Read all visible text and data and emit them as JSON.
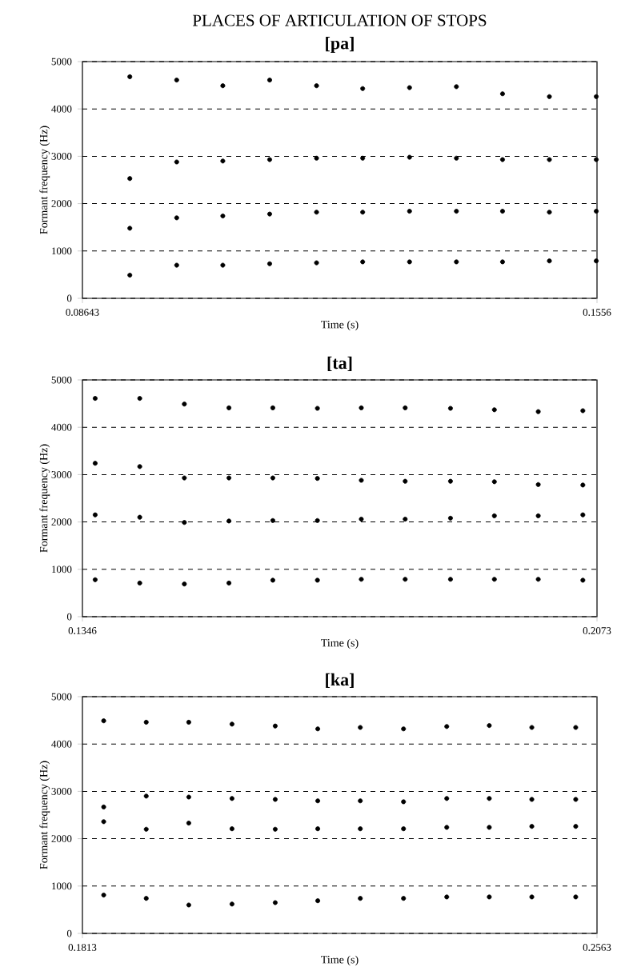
{
  "chart_data": [
    {
      "type": "scatter",
      "title": "[pa]",
      "xlabel": "Time (s)",
      "ylabel": "Formant frequency (Hz)",
      "annotations": [
        "PLACES OF ARTICULATION OF STOPS"
      ],
      "grid": "y",
      "xlim": [
        0.08643,
        0.1556
      ],
      "xticks": [
        0.08643,
        0.1556
      ],
      "ylim": [
        0,
        5000
      ],
      "yticks": [
        0,
        1000,
        2000,
        3000,
        4000,
        5000
      ],
      "x": [
        0.0928,
        0.0991,
        0.1053,
        0.1116,
        0.1179,
        0.1241,
        0.1304,
        0.1367,
        0.1429,
        0.1492,
        0.1555
      ],
      "series": [
        {
          "color": "#000000",
          "values": [
            490,
            700,
            700,
            730,
            750,
            770,
            770,
            770,
            770,
            790,
            790
          ]
        },
        {
          "color": "#000000",
          "values": [
            1480,
            1700,
            1740,
            1780,
            1820,
            1820,
            1840,
            1840,
            1840,
            1820,
            1840
          ]
        },
        {
          "color": "#000000",
          "values": [
            2530,
            2880,
            2900,
            2930,
            2960,
            2960,
            2980,
            2960,
            2930,
            2930,
            2930
          ]
        },
        {
          "color": "#000000",
          "values": [
            4680,
            4610,
            4490,
            4610,
            4490,
            4430,
            4450,
            4470,
            4320,
            4260,
            4260
          ]
        }
      ]
    },
    {
      "type": "scatter",
      "title": "[ta]",
      "xlabel": "Time (s)",
      "ylabel": "Formant frequency (Hz)",
      "grid": "y",
      "xlim": [
        0.1346,
        0.2073
      ],
      "xticks": [
        0.1346,
        0.2073
      ],
      "ylim": [
        0,
        5000
      ],
      "yticks": [
        0,
        1000,
        2000,
        3000,
        4000,
        5000
      ],
      "x": [
        0.1364,
        0.1427,
        0.149,
        0.1553,
        0.1615,
        0.1678,
        0.174,
        0.1802,
        0.1866,
        0.1928,
        0.199,
        0.2053
      ],
      "series": [
        {
          "color": "#000000",
          "values": [
            780,
            710,
            690,
            710,
            770,
            770,
            790,
            790,
            790,
            790,
            790,
            770
          ]
        },
        {
          "color": "#000000",
          "values": [
            2150,
            2100,
            1990,
            2020,
            2030,
            2030,
            2060,
            2060,
            2080,
            2130,
            2130,
            2150
          ]
        },
        {
          "color": "#000000",
          "values": [
            3240,
            3170,
            2930,
            2930,
            2930,
            2920,
            2880,
            2860,
            2860,
            2850,
            2790,
            2780
          ]
        },
        {
          "color": "#000000",
          "values": [
            4610,
            4610,
            4490,
            4410,
            4410,
            4400,
            4410,
            4410,
            4400,
            4370,
            4330,
            4350
          ]
        }
      ]
    },
    {
      "type": "scatter",
      "title": "[ka]",
      "xlabel": "Time (s)",
      "ylabel": "Formant frequency (Hz)",
      "grid": "y",
      "xlim": [
        0.1813,
        0.2563
      ],
      "xticks": [
        0.1813,
        0.2563
      ],
      "ylim": [
        0,
        5000
      ],
      "yticks": [
        0,
        1000,
        2000,
        3000,
        4000,
        5000
      ],
      "x": [
        0.1844,
        0.1906,
        0.1968,
        0.2031,
        0.2094,
        0.2156,
        0.2218,
        0.2281,
        0.2344,
        0.2406,
        0.2468,
        0.2532
      ],
      "series": [
        {
          "color": "#000000",
          "values": [
            810,
            740,
            600,
            620,
            650,
            690,
            740,
            740,
            770,
            770,
            770,
            770
          ]
        },
        {
          "color": "#000000",
          "values": [
            2360,
            2200,
            2330,
            2210,
            2200,
            2210,
            2210,
            2210,
            2240,
            2240,
            2260,
            2260
          ]
        },
        {
          "color": "#000000",
          "values": [
            2670,
            2900,
            2880,
            2850,
            2830,
            2800,
            2800,
            2780,
            2850,
            2850,
            2830,
            2830
          ]
        },
        {
          "color": "#000000",
          "values": [
            4490,
            4460,
            4460,
            4420,
            4380,
            4320,
            4350,
            4320,
            4370,
            4390,
            4350,
            4350
          ]
        }
      ]
    }
  ]
}
